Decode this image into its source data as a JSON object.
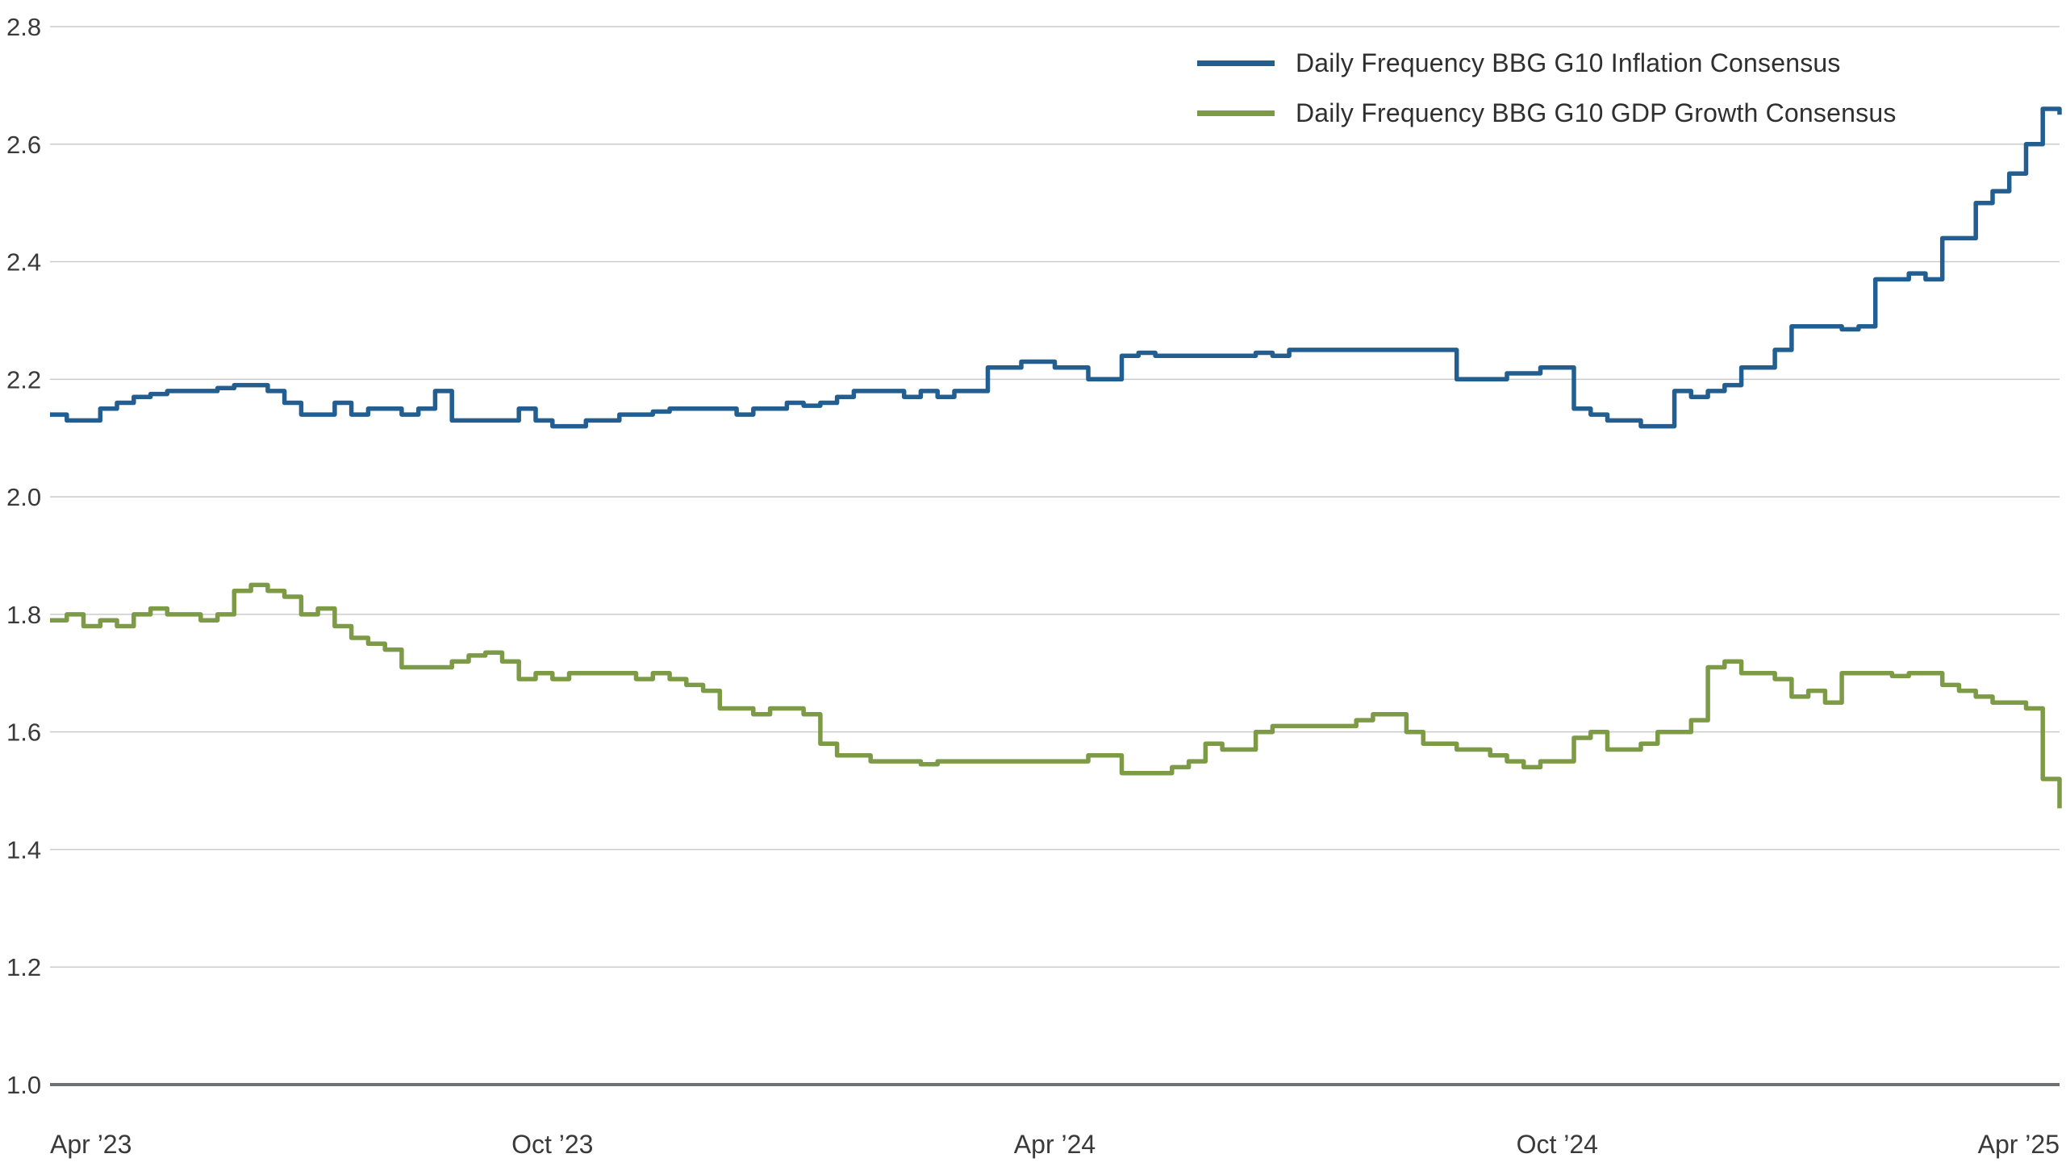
{
  "chart_data": {
    "type": "line",
    "title": "",
    "xlabel": "",
    "ylabel": "",
    "ylim": [
      1.0,
      2.8
    ],
    "yticks": [
      1.0,
      1.2,
      1.4,
      1.6,
      1.8,
      2.0,
      2.2,
      2.4,
      2.6,
      2.8
    ],
    "grid": true,
    "legend_position": "top-right",
    "xticks": {
      "positions": [
        0,
        0.25,
        0.5,
        0.75,
        1
      ],
      "labels": [
        "Apr ’23",
        "Oct ’23",
        "Apr ’24",
        "Oct ’24",
        "Apr ’25"
      ]
    },
    "colors": {
      "grid": "#c9cbcd",
      "axis": "#6e7072",
      "text": "#3a3a3a",
      "background": "#ffffff"
    },
    "series": [
      {
        "name": "Daily Frequency BBG G10 Inflation Consensus",
        "color": "#235e90",
        "values": [
          2.14,
          2.13,
          2.13,
          2.15,
          2.16,
          2.17,
          2.175,
          2.18,
          2.18,
          2.18,
          2.185,
          2.19,
          2.19,
          2.18,
          2.16,
          2.14,
          2.14,
          2.16,
          2.14,
          2.15,
          2.15,
          2.14,
          2.15,
          2.18,
          2.13,
          2.13,
          2.13,
          2.13,
          2.15,
          2.13,
          2.12,
          2.12,
          2.13,
          2.13,
          2.14,
          2.14,
          2.145,
          2.15,
          2.15,
          2.15,
          2.15,
          2.14,
          2.15,
          2.15,
          2.16,
          2.155,
          2.16,
          2.17,
          2.18,
          2.18,
          2.18,
          2.17,
          2.18,
          2.17,
          2.18,
          2.18,
          2.22,
          2.22,
          2.23,
          2.23,
          2.22,
          2.22,
          2.2,
          2.2,
          2.24,
          2.245,
          2.24,
          2.24,
          2.24,
          2.24,
          2.24,
          2.24,
          2.245,
          2.24,
          2.25,
          2.25,
          2.25,
          2.25,
          2.25,
          2.25,
          2.25,
          2.25,
          2.25,
          2.25,
          2.2,
          2.2,
          2.2,
          2.21,
          2.21,
          2.22,
          2.22,
          2.15,
          2.14,
          2.13,
          2.13,
          2.12,
          2.12,
          2.18,
          2.17,
          2.18,
          2.19,
          2.22,
          2.22,
          2.25,
          2.29,
          2.29,
          2.29,
          2.285,
          2.29,
          2.37,
          2.37,
          2.38,
          2.37,
          2.44,
          2.44,
          2.5,
          2.52,
          2.55,
          2.6,
          2.66,
          2.65
        ]
      },
      {
        "name": "Daily Frequency BBG G10 GDP Growth Consensus",
        "color": "#7d9a46",
        "values": [
          1.79,
          1.8,
          1.78,
          1.79,
          1.78,
          1.8,
          1.81,
          1.8,
          1.8,
          1.79,
          1.8,
          1.84,
          1.85,
          1.84,
          1.83,
          1.8,
          1.81,
          1.78,
          1.76,
          1.75,
          1.74,
          1.71,
          1.71,
          1.71,
          1.72,
          1.73,
          1.735,
          1.72,
          1.69,
          1.7,
          1.69,
          1.7,
          1.7,
          1.7,
          1.7,
          1.69,
          1.7,
          1.69,
          1.68,
          1.67,
          1.64,
          1.64,
          1.63,
          1.64,
          1.64,
          1.63,
          1.58,
          1.56,
          1.56,
          1.55,
          1.55,
          1.55,
          1.545,
          1.55,
          1.55,
          1.55,
          1.55,
          1.55,
          1.55,
          1.55,
          1.55,
          1.55,
          1.56,
          1.56,
          1.53,
          1.53,
          1.53,
          1.54,
          1.55,
          1.58,
          1.57,
          1.57,
          1.6,
          1.61,
          1.61,
          1.61,
          1.61,
          1.61,
          1.62,
          1.63,
          1.63,
          1.6,
          1.58,
          1.58,
          1.57,
          1.57,
          1.56,
          1.55,
          1.54,
          1.55,
          1.55,
          1.59,
          1.6,
          1.57,
          1.57,
          1.58,
          1.6,
          1.6,
          1.62,
          1.71,
          1.72,
          1.7,
          1.7,
          1.69,
          1.66,
          1.67,
          1.65,
          1.7,
          1.7,
          1.7,
          1.695,
          1.7,
          1.7,
          1.68,
          1.67,
          1.66,
          1.65,
          1.65,
          1.64,
          1.52,
          1.47
        ]
      }
    ]
  }
}
